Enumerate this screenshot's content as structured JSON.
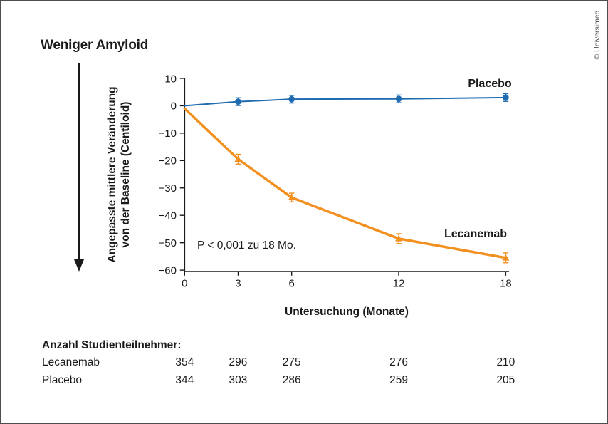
{
  "figure": {
    "direction_label": "Weniger Amyloid",
    "y_axis_label_line1": "Angepasste mittlere Veränderung",
    "y_axis_label_line2": "von der Baseline (Centiloid)",
    "x_axis_label": "Untersuchung (Monate)",
    "p_value_note": "P < 0,001 zu 18 Mo.",
    "copyright": "© Universimed",
    "colors": {
      "placebo": "#1f6bb0",
      "lecanemab": "#f29020",
      "axis": "#1a1a1a",
      "frame": "#4d4d4f"
    }
  },
  "chart_data": {
    "type": "line",
    "x": [
      0,
      3,
      6,
      12,
      18
    ],
    "xticks": [
      0,
      3,
      6,
      12,
      18
    ],
    "yticks": [
      10,
      0,
      -10,
      -20,
      -30,
      -40,
      -50,
      -60
    ],
    "xlim": [
      0,
      18
    ],
    "ylim": [
      -60,
      10
    ],
    "xlabel": "Untersuchung (Monate)",
    "ylabel": "Angepasste mittlere Veränderung von der Baseline (Centiloid)",
    "grid": false,
    "legend_position": "inline-labels",
    "annotation": "P < 0,001 zu 18 Mo.",
    "series": [
      {
        "name": "Placebo",
        "color": "#1f6bb0",
        "marker": "circle",
        "line_width": 2,
        "values": [
          0,
          1.5,
          2.4,
          2.5,
          3.0
        ],
        "errors": [
          0,
          1.4,
          1.4,
          1.4,
          1.4
        ]
      },
      {
        "name": "Lecanemab",
        "color": "#f29020",
        "marker": "triangle",
        "line_width": 3.5,
        "values": [
          -1,
          -19.5,
          -33.5,
          -48.5,
          -55.5
        ],
        "errors": [
          0,
          1.8,
          1.6,
          1.8,
          1.8
        ]
      }
    ]
  },
  "participants": {
    "title": "Anzahl Studienteilnehmer:",
    "columns_months": [
      0,
      3,
      6,
      12,
      18
    ],
    "rows": [
      {
        "label": "Lecanemab",
        "counts": [
          "354",
          "296",
          "275",
          "276",
          "210"
        ]
      },
      {
        "label": "Placebo",
        "counts": [
          "344",
          "303",
          "286",
          "259",
          "205"
        ]
      }
    ]
  }
}
